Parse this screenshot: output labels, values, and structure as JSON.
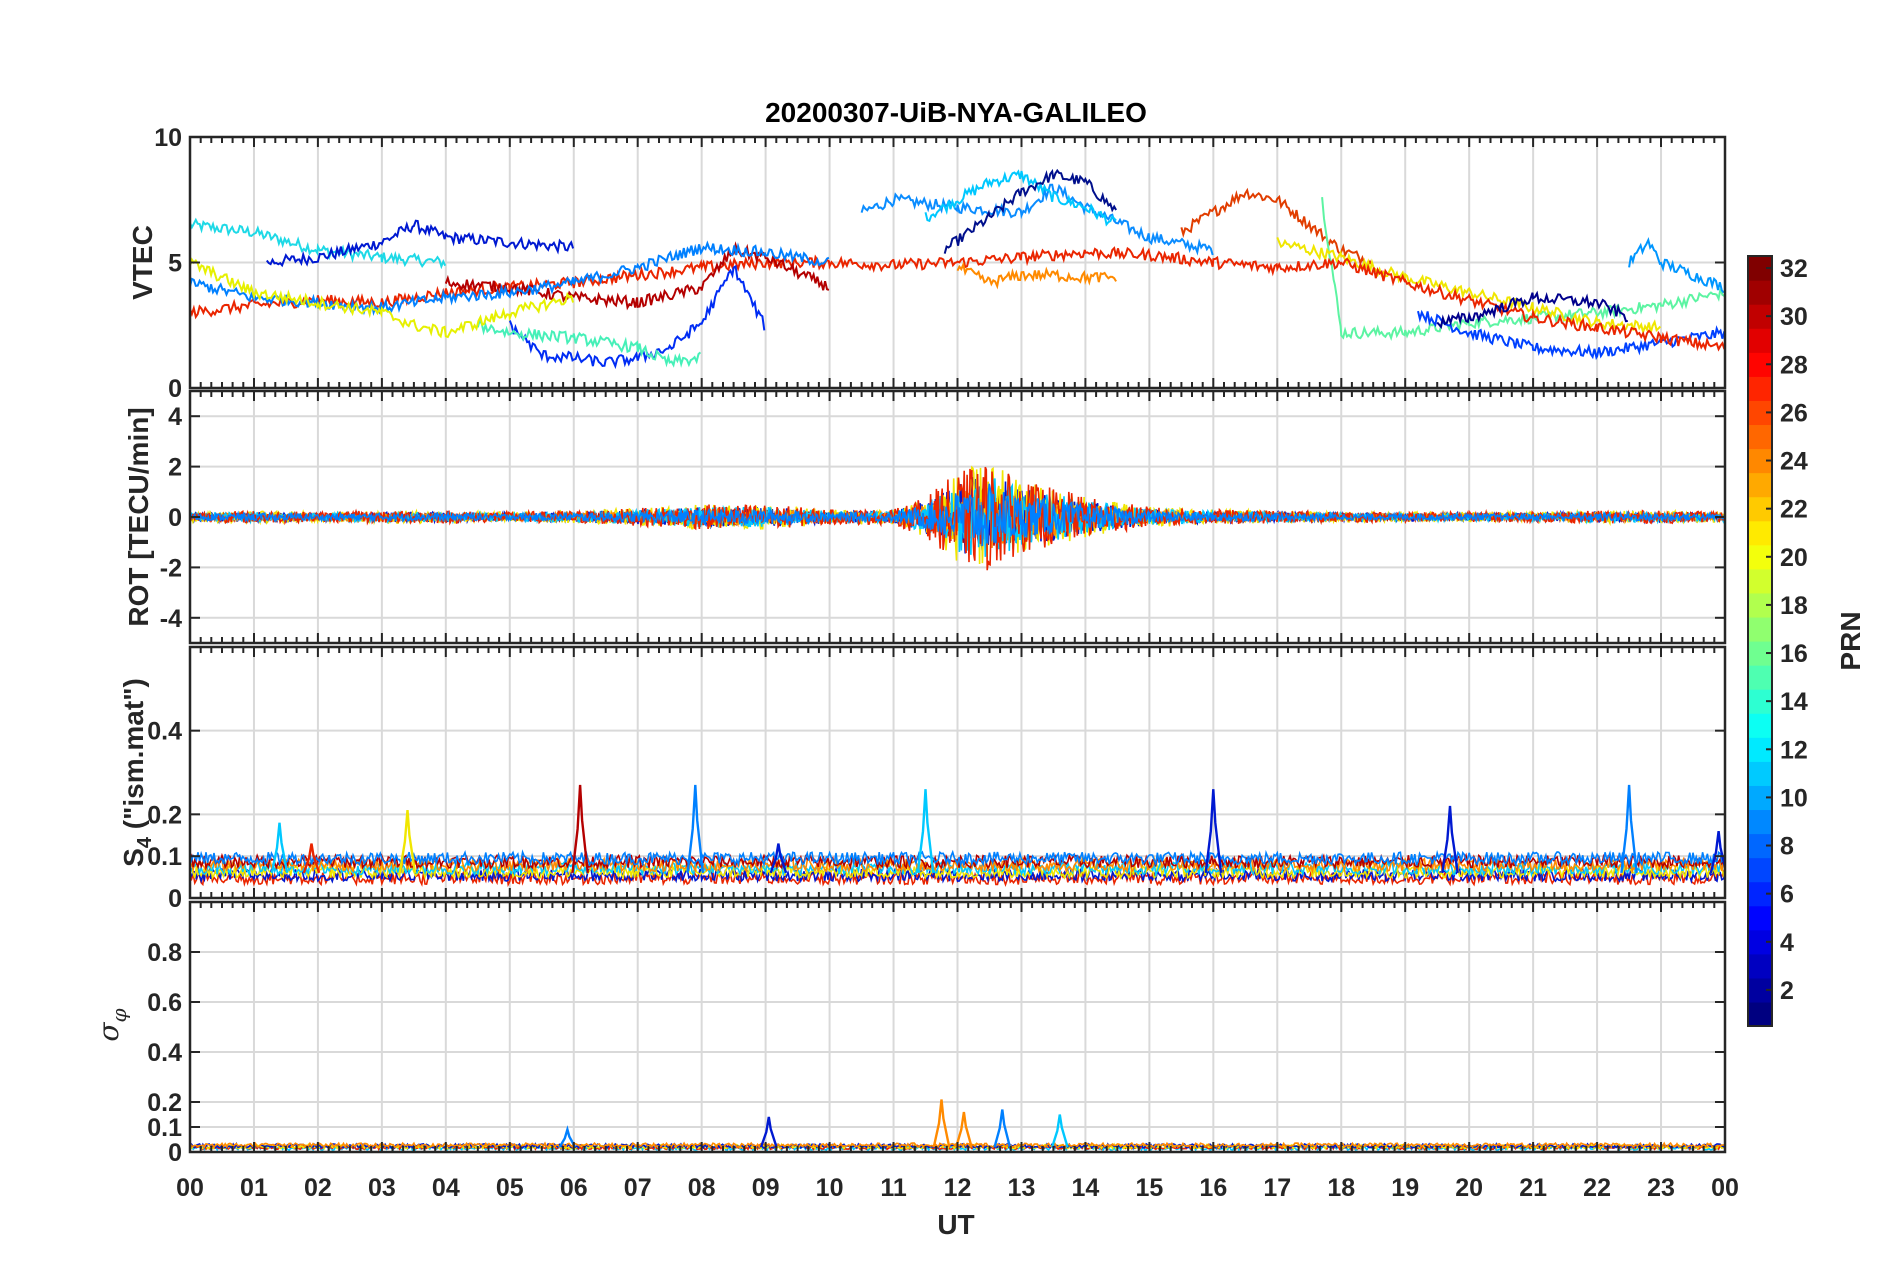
{
  "figure": {
    "title": "20200307-UiB-NYA-GALILEO",
    "xlabel": "UT",
    "x_tick_labels": [
      "00",
      "01",
      "02",
      "03",
      "04",
      "05",
      "06",
      "07",
      "08",
      "09",
      "10",
      "11",
      "12",
      "13",
      "14",
      "15",
      "16",
      "17",
      "18",
      "19",
      "20",
      "21",
      "22",
      "23",
      "00"
    ],
    "colorbar": {
      "label": "PRN",
      "range": [
        1,
        32
      ],
      "colormap": "jet",
      "tick_values": [
        2,
        4,
        6,
        8,
        10,
        12,
        14,
        16,
        18,
        20,
        22,
        24,
        26,
        28,
        30,
        32
      ]
    }
  },
  "chart_data": [
    {
      "type": "line",
      "panel": "VTEC",
      "ylabel": "VTEC",
      "xlim": [
        0,
        24
      ],
      "ylim": [
        0,
        10
      ],
      "y_ticks": [
        0,
        5,
        10
      ],
      "grid": true,
      "series": [
        {
          "prn": 13,
          "color": "#1ed9e6",
          "x": [
            0,
            1,
            2,
            3,
            4
          ],
          "y": [
            6.5,
            6.2,
            5.5,
            5.2,
            5.0
          ]
        },
        {
          "prn": 3,
          "color": "#0019d1",
          "x": [
            1.2,
            2,
            3,
            3.5,
            4,
            5,
            6
          ],
          "y": [
            5.0,
            5.2,
            5.8,
            6.5,
            6.0,
            5.8,
            5.6
          ]
        },
        {
          "prn": 8,
          "color": "#0a8cff",
          "x": [
            10.5,
            11,
            12,
            13,
            13.5,
            14,
            15,
            16
          ],
          "y": [
            7.0,
            7.5,
            7.2,
            7.0,
            8.0,
            7.2,
            6.0,
            5.5
          ]
        },
        {
          "prn": 12,
          "color": "#00c8ff",
          "x": [
            11.5,
            12,
            12.5,
            13,
            13.5,
            14,
            14.5
          ],
          "y": [
            6.8,
            7.5,
            8.2,
            8.5,
            7.6,
            7.2,
            6.5
          ]
        },
        {
          "prn": 2,
          "color": "#000f8c",
          "x": [
            11.8,
            12.5,
            13,
            13.5,
            14,
            14.5
          ],
          "y": [
            5.5,
            6.8,
            7.8,
            8.5,
            8.2,
            7.0
          ]
        },
        {
          "prn": 27,
          "color": "#e13d00",
          "x": [
            15.5,
            16,
            16.5,
            17,
            17.5,
            18,
            18.5
          ],
          "y": [
            6.2,
            7.0,
            7.8,
            7.5,
            6.5,
            5.5,
            5.0
          ]
        },
        {
          "prn": 16,
          "color": "#5cf4a2",
          "x": [
            17.7,
            17.9,
            18,
            19,
            20,
            21,
            22,
            23,
            24
          ],
          "y": [
            7.5,
            4.0,
            2.2,
            2.2,
            2.6,
            2.8,
            3.0,
            3.3,
            3.8
          ]
        },
        {
          "prn": 20,
          "color": "#f0e600",
          "x": [
            17,
            18,
            19,
            20,
            21,
            22,
            23
          ],
          "y": [
            5.8,
            5.2,
            4.4,
            3.8,
            3.2,
            2.6,
            2.4
          ]
        },
        {
          "prn": 10,
          "color": "#0096ff",
          "x": [
            22.5,
            22.8,
            23,
            23.5,
            24
          ],
          "y": [
            5.0,
            5.8,
            5.0,
            4.5,
            4.0
          ]
        },
        {
          "prn": 5,
          "color": "#0041ff",
          "x": [
            19.2,
            20,
            21,
            22,
            23,
            24
          ],
          "y": [
            3.0,
            2.2,
            1.6,
            1.4,
            1.8,
            2.2
          ]
        },
        {
          "prn": 28,
          "color": "#ea2500",
          "x": [
            0,
            1,
            2,
            3,
            4,
            5,
            6,
            7,
            8,
            9,
            10,
            11,
            12,
            13,
            14,
            15,
            16,
            17,
            18,
            19,
            20,
            21,
            22,
            23,
            24
          ],
          "y": [
            3.0,
            3.3,
            3.5,
            3.4,
            3.8,
            4.0,
            4.2,
            4.5,
            4.8,
            5.0,
            5.0,
            4.9,
            5.0,
            5.2,
            5.4,
            5.3,
            5.0,
            4.8,
            5.0,
            4.2,
            3.5,
            2.8,
            2.4,
            2.0,
            1.6
          ]
        },
        {
          "prn": 31,
          "color": "#b40000",
          "x": [
            4,
            5,
            6,
            7,
            8,
            8.5,
            9,
            10
          ],
          "y": [
            4.2,
            4.0,
            3.6,
            3.4,
            4.0,
            5.5,
            5.2,
            4.0
          ]
        },
        {
          "prn": 24,
          "color": "#ff8a00",
          "x": [
            12,
            12.5,
            13,
            13.5,
            14,
            14.5
          ],
          "y": [
            4.8,
            4.2,
            4.5,
            4.5,
            4.4,
            4.4
          ]
        },
        {
          "prn": 4,
          "color": "#002cf4",
          "x": [
            5,
            5.5,
            6,
            6.5,
            7,
            7.5,
            8,
            8.5,
            9
          ],
          "y": [
            2.5,
            1.3,
            1.2,
            1.0,
            1.2,
            1.6,
            2.6,
            4.8,
            2.4
          ]
        },
        {
          "prn": 15,
          "color": "#46f0b8",
          "x": [
            4.5,
            5,
            6,
            7,
            7.5,
            8
          ],
          "y": [
            2.5,
            2.2,
            2.0,
            1.6,
            1.0,
            1.2
          ]
        },
        {
          "prn": 9,
          "color": "#0080ff",
          "x": [
            0,
            1,
            2,
            3,
            4,
            5,
            6,
            7,
            8,
            9,
            10
          ],
          "y": [
            4.2,
            3.6,
            3.4,
            3.2,
            3.6,
            3.8,
            4.2,
            4.8,
            5.6,
            5.4,
            5.0
          ]
        },
        {
          "prn": 19,
          "color": "#e6f000",
          "x": [
            0,
            1,
            2,
            3,
            3.5,
            4,
            5,
            6
          ],
          "y": [
            5.0,
            3.8,
            3.4,
            3.0,
            2.5,
            2.2,
            3.0,
            3.6
          ]
        },
        {
          "prn": 1,
          "color": "#00008c",
          "x": [
            19.5,
            20,
            21,
            22,
            22.5
          ],
          "y": [
            2.6,
            2.8,
            3.6,
            3.4,
            2.8
          ]
        }
      ]
    },
    {
      "type": "line",
      "panel": "ROT",
      "ylabel": "ROT [TECU/min]",
      "xlim": [
        0,
        24
      ],
      "ylim": [
        -5,
        5
      ],
      "y_ticks": [
        -4,
        -2,
        0,
        2,
        4
      ],
      "grid": true,
      "noise_envelope": {
        "x": [
          0,
          1,
          2,
          3,
          4,
          5,
          6,
          7,
          8,
          9,
          10,
          11,
          11.5,
          12,
          12.5,
          13,
          13.5,
          14,
          15,
          16,
          17,
          18,
          19,
          20,
          21,
          22,
          23,
          24
        ],
        "amplitude": [
          0.2,
          0.25,
          0.2,
          0.25,
          0.25,
          0.2,
          0.25,
          0.35,
          0.5,
          0.5,
          0.3,
          0.3,
          0.8,
          1.8,
          2.2,
          1.4,
          1.2,
          0.8,
          0.4,
          0.3,
          0.25,
          0.2,
          0.2,
          0.2,
          0.2,
          0.25,
          0.25,
          0.2
        ]
      },
      "series_colors": [
        "#b40000",
        "#0019d1",
        "#f0e600",
        "#ff8a00",
        "#00c8ff",
        "#ea2500",
        "#0080ff"
      ]
    },
    {
      "type": "line",
      "panel": "S4",
      "ylabel": "S4 (\"ism.mat\")",
      "xlim": [
        0,
        24
      ],
      "ylim": [
        0,
        0.6
      ],
      "y_ticks": [
        0,
        0.1,
        0.2,
        0.4
      ],
      "grid": true,
      "baseline": 0.06,
      "series_colors": [
        "#ea2500",
        "#0019d1",
        "#f0e600",
        "#00c8ff",
        "#ff8a00",
        "#b40000",
        "#0080ff"
      ],
      "spikes": [
        {
          "x": 1.4,
          "y": 0.18,
          "color": "#00c8ff"
        },
        {
          "x": 1.9,
          "y": 0.13,
          "color": "#ea2500"
        },
        {
          "x": 3.4,
          "y": 0.21,
          "color": "#f0e600"
        },
        {
          "x": 6.1,
          "y": 0.27,
          "color": "#b40000"
        },
        {
          "x": 7.9,
          "y": 0.27,
          "color": "#0080ff"
        },
        {
          "x": 9.2,
          "y": 0.13,
          "color": "#0019d1"
        },
        {
          "x": 11.5,
          "y": 0.26,
          "color": "#00c8ff"
        },
        {
          "x": 16.0,
          "y": 0.26,
          "color": "#0019d1"
        },
        {
          "x": 19.7,
          "y": 0.22,
          "color": "#0019d1"
        },
        {
          "x": 22.5,
          "y": 0.27,
          "color": "#0080ff"
        },
        {
          "x": 23.9,
          "y": 0.16,
          "color": "#0019d1"
        }
      ]
    },
    {
      "type": "line",
      "panel": "SigmaPhi",
      "ylabel": "σ φ",
      "xlim": [
        0,
        24
      ],
      "ylim": [
        0,
        1.0
      ],
      "y_ticks": [
        0,
        0.1,
        0.2,
        0.4,
        0.6,
        0.8
      ],
      "grid": true,
      "baseline": 0.02,
      "series_colors": [
        "#00c8ff",
        "#ea2500",
        "#f0e600",
        "#0019d1",
        "#ff8a00"
      ],
      "spikes": [
        {
          "x": 5.9,
          "y": 0.09,
          "color": "#0080ff"
        },
        {
          "x": 9.05,
          "y": 0.14,
          "color": "#0019d1"
        },
        {
          "x": 11.75,
          "y": 0.21,
          "color": "#ff8a00"
        },
        {
          "x": 12.1,
          "y": 0.16,
          "color": "#ff8a00"
        },
        {
          "x": 12.7,
          "y": 0.17,
          "color": "#0080ff"
        },
        {
          "x": 13.6,
          "y": 0.15,
          "color": "#00c8ff"
        }
      ]
    }
  ]
}
